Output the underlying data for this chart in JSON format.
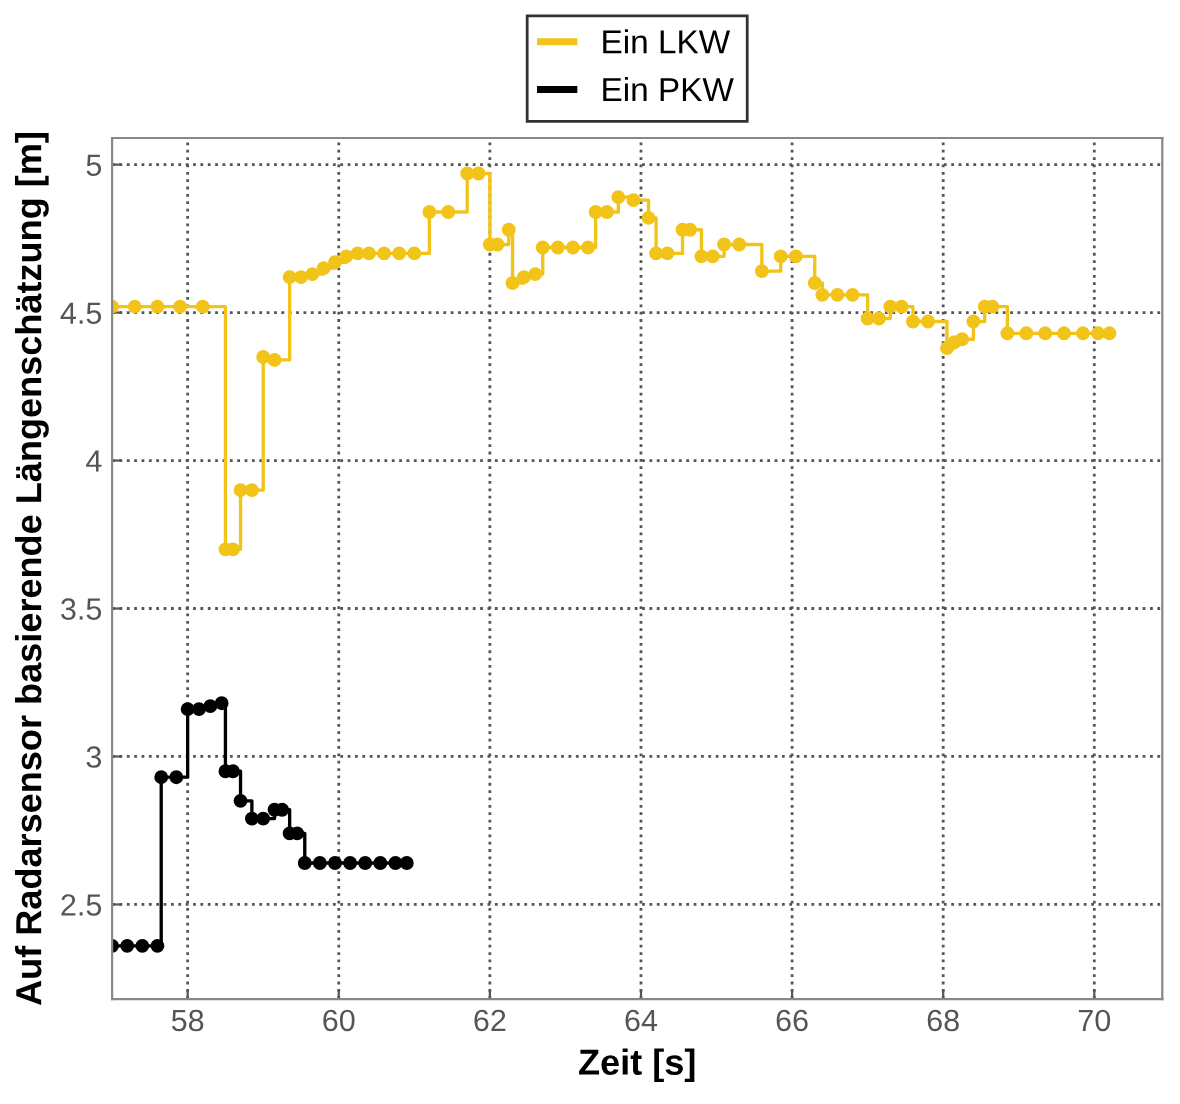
{
  "chart_data": {
    "type": "step",
    "xlabel": "Zeit [s]",
    "ylabel": "Auf Radarsensor basierende Längenschätzung [m]",
    "xlim": [
      57,
      70.9
    ],
    "ylim": [
      2.18,
      5.09
    ],
    "xticks": [
      58,
      60,
      62,
      64,
      66,
      68,
      70
    ],
    "yticks": [
      2.5,
      3,
      3.5,
      4,
      4.5,
      5
    ],
    "grid": true,
    "legend": "top",
    "marker": "circle",
    "line_style": "solid",
    "series": [
      {
        "name": "Ein LKW",
        "color": "#f2c318",
        "x": [
          57.0,
          57.3,
          57.6,
          57.9,
          58.2,
          58.5,
          58.6,
          58.7,
          58.85,
          59.0,
          59.15,
          59.35,
          59.5,
          59.65,
          59.8,
          59.95,
          60.1,
          60.25,
          60.4,
          60.6,
          60.8,
          61.0,
          61.2,
          61.45,
          61.7,
          61.85,
          62.0,
          62.1,
          62.25,
          62.3,
          62.45,
          62.6,
          62.7,
          62.9,
          63.1,
          63.3,
          63.4,
          63.55,
          63.7,
          63.9,
          64.1,
          64.2,
          64.35,
          64.55,
          64.65,
          64.8,
          64.95,
          65.1,
          65.3,
          65.6,
          65.85,
          66.05,
          66.3,
          66.4,
          66.6,
          66.8,
          67.0,
          67.15,
          67.3,
          67.45,
          67.6,
          67.8,
          68.05,
          68.15,
          68.25,
          68.4,
          68.55,
          68.65,
          68.85,
          69.1,
          69.35,
          69.6,
          69.85,
          70.05,
          70.2
        ],
        "values": [
          4.52,
          4.52,
          4.52,
          4.52,
          4.52,
          3.7,
          3.7,
          3.9,
          3.9,
          4.35,
          4.34,
          4.62,
          4.62,
          4.63,
          4.65,
          4.67,
          4.69,
          4.7,
          4.7,
          4.7,
          4.7,
          4.7,
          4.84,
          4.84,
          4.97,
          4.97,
          4.73,
          4.73,
          4.78,
          4.6,
          4.62,
          4.63,
          4.72,
          4.72,
          4.72,
          4.72,
          4.84,
          4.84,
          4.89,
          4.88,
          4.82,
          4.7,
          4.7,
          4.78,
          4.78,
          4.69,
          4.69,
          4.73,
          4.73,
          4.64,
          4.69,
          4.69,
          4.6,
          4.56,
          4.56,
          4.56,
          4.48,
          4.48,
          4.52,
          4.52,
          4.47,
          4.47,
          4.38,
          4.4,
          4.41,
          4.47,
          4.52,
          4.52,
          4.43,
          4.43,
          4.43,
          4.43,
          4.43,
          4.43,
          4.43
        ]
      },
      {
        "name": "Ein PKW",
        "color": "#000000",
        "x": [
          57.0,
          57.2,
          57.4,
          57.6,
          57.65,
          57.85,
          58.0,
          58.15,
          58.3,
          58.45,
          58.5,
          58.6,
          58.7,
          58.85,
          59.0,
          59.15,
          59.25,
          59.35,
          59.45,
          59.55,
          59.75,
          59.95,
          60.15,
          60.35,
          60.55,
          60.75,
          60.9
        ],
        "values": [
          2.36,
          2.36,
          2.36,
          2.36,
          2.93,
          2.93,
          3.16,
          3.16,
          3.17,
          3.18,
          2.95,
          2.95,
          2.85,
          2.79,
          2.79,
          2.82,
          2.82,
          2.74,
          2.74,
          2.64,
          2.64,
          2.64,
          2.64,
          2.64,
          2.64,
          2.64,
          2.64
        ]
      }
    ]
  }
}
